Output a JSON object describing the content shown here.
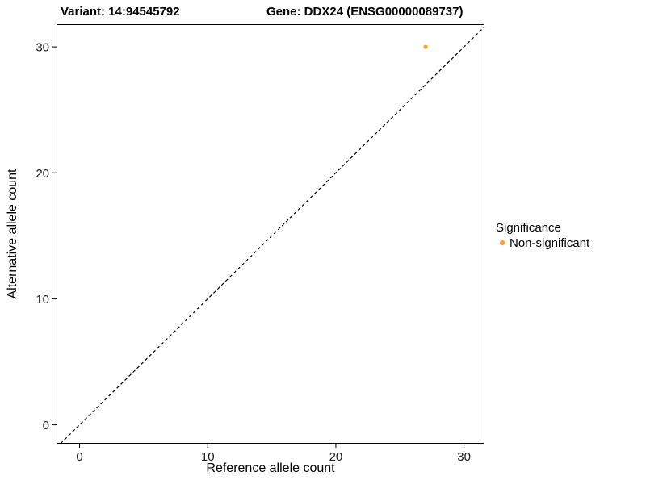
{
  "chart_data": {
    "type": "scatter",
    "title_variant": "Variant: 14:94545792",
    "title_gene": "Gene: DDX24 (ENSG00000089737)",
    "xlabel": "Reference allele count",
    "ylabel": "Alternative allele count",
    "xlim": [
      -1.8,
      31.6
    ],
    "ylim": [
      -1.5,
      31.8
    ],
    "xticks": [
      0,
      10,
      20,
      30
    ],
    "yticks": [
      0,
      10,
      20,
      30
    ],
    "grid": false,
    "points": [
      {
        "x": 27,
        "y": 30,
        "series": "Non-significant"
      }
    ],
    "identity_line": {
      "style": "dashed",
      "color": "#000000"
    },
    "legend": {
      "position": "right",
      "title": "Significance",
      "entries": [
        {
          "label": "Non-significant",
          "color": "#F9A03F"
        }
      ]
    }
  }
}
